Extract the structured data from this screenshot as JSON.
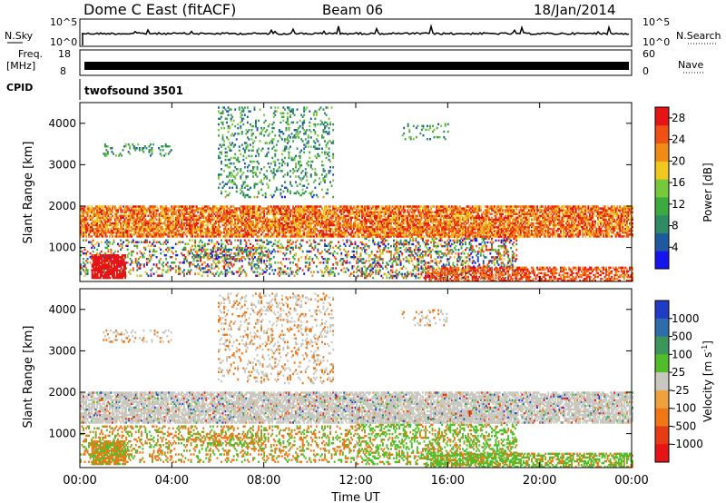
{
  "header": {
    "title": "Dome C East (fitACF)",
    "beam": "Beam 06",
    "date": "18/Jan/2014"
  },
  "noise_panel": {
    "left_label": "N.Sky",
    "right_label": "N.Search",
    "left_ticks": [
      "10^5",
      "10^0"
    ],
    "right_ticks": [
      "10^5",
      "10^0"
    ]
  },
  "freq_panel": {
    "left_label_line1": "Freq.",
    "left_label_line2": "[MHz]",
    "left_ticks": [
      "18",
      "8"
    ],
    "right_label": "Nave",
    "right_ticks": [
      "60",
      "0"
    ]
  },
  "cpid": {
    "label": "CPID",
    "value": "twofsound 3501"
  },
  "colors": {
    "power_scale": [
      "#1414f0",
      "#1e5aa0",
      "#2d8c64",
      "#3caa3c",
      "#78c83c",
      "#f0c81e",
      "#f08c14",
      "#f05014",
      "#e61414"
    ],
    "velocity_scale": [
      "#1e3cc8",
      "#2d6eaa",
      "#3c965a",
      "#50be28",
      "#c8c8c0",
      "#f0a03c",
      "#f07814",
      "#e63c14",
      "#e61414"
    ]
  },
  "chart_data": [
    {
      "type": "heatmap",
      "name": "power",
      "xlabel": "Time UT",
      "ylabel": "Slant Range [km]",
      "xticks": [
        "00:00",
        "04:00",
        "08:00",
        "12:00",
        "16:00",
        "20:00",
        "00:00"
      ],
      "xlim": [
        0,
        24
      ],
      "yticks": [
        "1000",
        "2000",
        "3000",
        "4000"
      ],
      "ylim": [
        180,
        4500
      ],
      "colorbar": {
        "label": "Power [dB]",
        "ticks": [
          "28",
          "24",
          "20",
          "16",
          "12",
          "8",
          "4"
        ],
        "range": [
          0,
          30
        ]
      }
    },
    {
      "type": "heatmap",
      "name": "velocity",
      "xlabel": "Time UT",
      "ylabel": "Slant Range [km]",
      "xticks": [
        "00:00",
        "04:00",
        "08:00",
        "12:00",
        "16:00",
        "20:00",
        "00:00"
      ],
      "xlim": [
        0,
        24
      ],
      "yticks": [
        "1000",
        "2000",
        "3000",
        "4000"
      ],
      "ylim": [
        180,
        4500
      ],
      "colorbar": {
        "label_main": "Velocity",
        "label_unit": "[m s",
        "label_exp": "-1",
        "label_close": "]",
        "ticks": [
          "1000",
          "500",
          "100",
          "25",
          "-25",
          "-100",
          "-500",
          "-1000"
        ]
      }
    }
  ],
  "x_axis_title": "Time UT"
}
